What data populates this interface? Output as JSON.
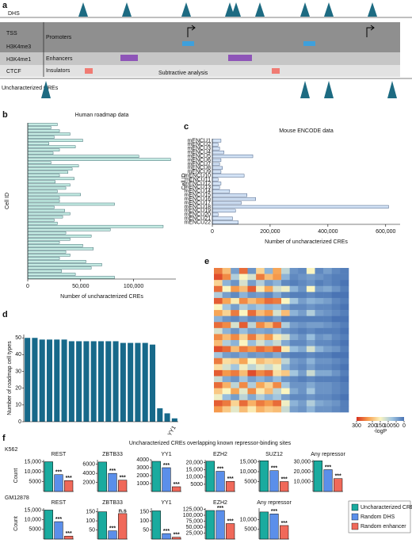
{
  "panel_labels": [
    "a",
    "b",
    "c",
    "d",
    "e",
    "f"
  ],
  "diagram": {
    "tracks": [
      "DHS",
      "TSS",
      "H3K4me3",
      "H3K4me1",
      "CTCF",
      "Uncharacterized CREs"
    ],
    "regions": [
      "Promoters",
      "Enhancers",
      "Insulators"
    ],
    "note": "Subtractive analysis"
  },
  "chart_data": [
    {
      "type": "hbar",
      "title": "Human roadmap data",
      "ylabel": "Cell ID",
      "xlabel": "Number of uncharacterized CREs",
      "color": "#c4ebe3",
      "edgecolor": "#1d4f57",
      "categories": [
        null,
        null,
        null,
        null,
        null,
        null,
        null,
        null,
        null,
        null,
        null,
        null,
        null,
        null,
        null,
        null,
        null,
        null,
        null,
        null,
        null,
        null,
        null,
        null,
        null,
        null,
        null,
        null,
        null,
        null,
        null,
        null,
        null,
        null,
        null,
        null,
        null,
        null,
        null,
        null,
        null,
        null,
        null,
        null,
        null,
        null,
        null,
        null,
        null
      ],
      "values": [
        28000,
        22000,
        30000,
        40000,
        25000,
        52000,
        20000,
        45000,
        30000,
        24000,
        105000,
        135000,
        22000,
        48000,
        42000,
        38000,
        30000,
        44000,
        26000,
        40000,
        36000,
        28000,
        50000,
        30000,
        30000,
        82000,
        25000,
        35000,
        40000,
        33000,
        25000,
        28000,
        128000,
        78000,
        36000,
        60000,
        40000,
        30000,
        52000,
        62000,
        36000,
        40000,
        30000,
        55000,
        70000,
        60000,
        32000,
        45000,
        82000
      ],
      "xlim": [
        0,
        140000
      ],
      "xticks": [
        0,
        {
          "value": 50000,
          "label": "50,000"
        },
        {
          "value": 100000,
          "label": "100,000"
        }
      ]
    },
    {
      "type": "hbar",
      "title": "Mouse ENCODE data",
      "ylabel": "Cell ID",
      "xlabel": "Number of uncharacterized CREs",
      "color": "#d3e3f6",
      "edgecolor": "#1f3a66",
      "categories": [
        "mENCU1",
        "mENCU2",
        "mENCU3",
        "mENCU4",
        "mENCU5",
        "mENCU6",
        "mENCU7",
        "mENCU8",
        "mENCU9",
        "mENCU10",
        "mENCU11",
        "mENCU12",
        "mENCU13",
        "mENCU14",
        "mENCU15",
        "mENCU16",
        "mENCU17",
        "mENCU18",
        "mENCU19",
        "mENCU20",
        "mENCU21",
        "mENCU22"
      ],
      "values": [
        30000,
        20000,
        25000,
        40000,
        140000,
        30000,
        25000,
        35000,
        30000,
        110000,
        20000,
        30000,
        25000,
        60000,
        120000,
        150000,
        100000,
        610000,
        80000,
        20000,
        70000,
        90000
      ],
      "xlim": [
        0,
        650000
      ],
      "xticks": [
        0,
        {
          "value": 200000,
          "label": "200,000"
        },
        {
          "value": 400000,
          "label": "400,000"
        },
        {
          "value": 600000,
          "label": "600,000"
        }
      ]
    },
    {
      "type": "bar",
      "ylabel": "Number of roadmap cell types",
      "color": "#17698a",
      "categories": [
        null,
        null,
        null,
        null,
        null,
        null,
        null,
        null,
        null,
        null,
        null,
        null,
        null,
        null,
        null,
        null,
        null,
        null,
        null,
        null,
        "YY1"
      ],
      "values": [
        50,
        50,
        49,
        49,
        49,
        49,
        48,
        48,
        48,
        48,
        48,
        48,
        48,
        47,
        47,
        47,
        47,
        46,
        8,
        5,
        2
      ],
      "ylim": [
        0,
        52
      ],
      "yticks": [
        0,
        10,
        20,
        30,
        40,
        50
      ]
    },
    {
      "type": "heatmap",
      "colorbar_label": "-logP",
      "vlim": [
        0,
        300
      ],
      "cticks": [
        300,
        200,
        150,
        100,
        50,
        0
      ],
      "values": [
        [
          250,
          200,
          40,
          260,
          30,
          180,
          60,
          220,
          100,
          30,
          20,
          150,
          20,
          40,
          20,
          10
        ],
        [
          280,
          240,
          90,
          150,
          120,
          250,
          200,
          230,
          60,
          20,
          30,
          40,
          30,
          20,
          10,
          10
        ],
        [
          180,
          60,
          30,
          120,
          40,
          90,
          40,
          60,
          20,
          10,
          20,
          30,
          10,
          20,
          10,
          0
        ],
        [
          260,
          150,
          230,
          200,
          270,
          160,
          220,
          120,
          140,
          60,
          30,
          150,
          40,
          50,
          30,
          10
        ],
        [
          90,
          40,
          20,
          60,
          30,
          40,
          20,
          50,
          20,
          10,
          10,
          20,
          10,
          10,
          0,
          0
        ],
        [
          270,
          220,
          160,
          240,
          200,
          230,
          260,
          250,
          150,
          80,
          40,
          60,
          50,
          40,
          20,
          10
        ],
        [
          150,
          80,
          40,
          90,
          60,
          80,
          60,
          70,
          40,
          20,
          20,
          30,
          20,
          20,
          10,
          0
        ],
        [
          220,
          180,
          250,
          150,
          260,
          200,
          230,
          120,
          200,
          60,
          40,
          90,
          40,
          30,
          20,
          10
        ],
        [
          60,
          30,
          20,
          40,
          20,
          30,
          20,
          40,
          10,
          10,
          10,
          10,
          10,
          10,
          0,
          0
        ],
        [
          260,
          240,
          120,
          270,
          100,
          240,
          200,
          260,
          90,
          40,
          30,
          40,
          40,
          30,
          20,
          10
        ],
        [
          120,
          60,
          30,
          70,
          40,
          50,
          40,
          60,
          30,
          20,
          10,
          20,
          10,
          10,
          10,
          0
        ],
        [
          240,
          200,
          240,
          180,
          250,
          190,
          230,
          160,
          120,
          50,
          30,
          70,
          30,
          40,
          20,
          10
        ],
        [
          200,
          90,
          60,
          150,
          70,
          120,
          80,
          110,
          50,
          20,
          20,
          40,
          20,
          20,
          10,
          0
        ],
        [
          280,
          260,
          200,
          250,
          230,
          260,
          240,
          270,
          160,
          70,
          50,
          120,
          60,
          40,
          30,
          10
        ],
        [
          80,
          40,
          30,
          50,
          30,
          40,
          30,
          50,
          20,
          10,
          10,
          20,
          10,
          10,
          0,
          0
        ],
        [
          250,
          170,
          180,
          220,
          150,
          200,
          180,
          190,
          100,
          40,
          30,
          60,
          30,
          30,
          20,
          10
        ],
        [
          170,
          120,
          80,
          140,
          100,
          130,
          110,
          140,
          60,
          30,
          20,
          40,
          20,
          20,
          10,
          0
        ],
        [
          270,
          230,
          250,
          200,
          280,
          240,
          260,
          170,
          190,
          80,
          40,
          110,
          50,
          50,
          30,
          10
        ],
        [
          110,
          50,
          30,
          80,
          40,
          60,
          40,
          70,
          30,
          20,
          10,
          20,
          10,
          10,
          10,
          0
        ],
        [
          260,
          210,
          100,
          240,
          90,
          220,
          180,
          240,
          80,
          30,
          30,
          50,
          30,
          30,
          20,
          10
        ],
        [
          190,
          150,
          220,
          130,
          240,
          160,
          200,
          100,
          150,
          50,
          30,
          80,
          30,
          30,
          20,
          10
        ],
        [
          140,
          70,
          40,
          100,
          50,
          90,
          60,
          80,
          40,
          20,
          20,
          30,
          20,
          20,
          10,
          0
        ],
        [
          270,
          250,
          180,
          260,
          210,
          250,
          230,
          260,
          140,
          60,
          40,
          90,
          50,
          40,
          30,
          10
        ],
        [
          230,
          190,
          130,
          200,
          160,
          210,
          190,
          200,
          110,
          40,
          30,
          60,
          30,
          30,
          20,
          10
        ]
      ]
    },
    {
      "type": "panels",
      "title": "Uncharacterized CREs overlapping known repressor-binding sites",
      "ylabel": "Count",
      "series": [
        {
          "name": "Uncharacterized CRE",
          "color": "#1aab9f"
        },
        {
          "name": "Random DHS",
          "color": "#5b8fea"
        },
        {
          "name": "Random enhancer",
          "color": "#f0695a"
        }
      ],
      "rows": [
        {
          "label": "K562",
          "panels": [
            {
              "title": "REST",
              "values": [
                15000,
                8500,
                5500
              ],
              "ylim": [
                0,
                16000
              ],
              "yticks": [
                5000,
                {
                  "value": 10000,
                  "label": "10,000"
                },
                {
                  "value": 15000,
                  "label": "15,000"
                }
              ],
              "annotations": [
                null,
                "***",
                "***"
              ]
            },
            {
              "title": "ZBTB33",
              "values": [
                6500,
                4000,
                2500
              ],
              "ylim": [
                0,
                7000
              ],
              "yticks": [
                2000,
                4000,
                6000
              ],
              "annotations": [
                null,
                "***",
                "***"
              ]
            },
            {
              "title": "YY1",
              "values": [
                3800,
                3000,
                600
              ],
              "ylim": [
                0,
                4000
              ],
              "yticks": [
                1000,
                2000,
                3000,
                4000
              ],
              "annotations": [
                null,
                "***",
                "***"
              ]
            },
            {
              "title": "EZH2",
              "values": [
                21000,
                14000,
                7000
              ],
              "ylim": [
                0,
                22000
              ],
              "yticks": [
                5000,
                {
                  "value": 10000,
                  "label": "10,000"
                },
                {
                  "value": 15000,
                  "label": "15,000"
                },
                {
                  "value": 20000,
                  "label": "20,000"
                }
              ],
              "annotations": [
                null,
                "***",
                "***"
              ]
            },
            {
              "title": "SUZ12",
              "values": [
                15500,
                10500,
                5000
              ],
              "ylim": [
                0,
                16000
              ],
              "yticks": [
                5000,
                {
                  "value": 10000,
                  "label": "10,000"
                },
                {
                  "value": 15000,
                  "label": "15,000"
                }
              ],
              "annotations": [
                null,
                "***",
                "***"
              ]
            },
            {
              "title": "Any repressor",
              "values": [
                31000,
                22000,
                13000
              ],
              "ylim": [
                0,
                32000
              ],
              "yticks": [
                {
                  "value": 10000,
                  "label": "10,000"
                },
                {
                  "value": 20000,
                  "label": "20,000"
                },
                {
                  "value": 30000,
                  "label": "30,000"
                }
              ],
              "annotations": [
                null,
                "***",
                "***"
              ]
            }
          ]
        },
        {
          "label": "GM12878",
          "panels": [
            {
              "title": "REST",
              "values": [
                15000,
                9000,
                1500
              ],
              "ylim": [
                0,
                16000
              ],
              "yticks": [
                5000,
                {
                  "value": 10000,
                  "label": "10,000"
                },
                {
                  "value": 15000,
                  "label": "15,000"
                }
              ],
              "annotations": [
                null,
                "***",
                "***"
              ]
            },
            {
              "title": "ZBTB33",
              "values": [
                150,
                45,
                140
              ],
              "ylim": [
                0,
                170
              ],
              "yticks": [
                50,
                100,
                150
              ],
              "annotations": [
                null,
                "***",
                "n.s"
              ]
            },
            {
              "title": "YY1",
              "values": [
                155,
                30,
                10
              ],
              "ylim": [
                0,
                170
              ],
              "yticks": [
                50,
                100,
                150
              ],
              "annotations": [
                null,
                "***",
                "***"
              ]
            },
            {
              "title": "EZH2",
              "values": [
                120000,
                120000,
                65000
              ],
              "ylim": [
                0,
                130000
              ],
              "yticks": [
                {
                  "value": 25000,
                  "label": "25,000"
                },
                {
                  "value": 50000,
                  "label": "50,000"
                },
                {
                  "value": 75000,
                  "label": "75,000"
                },
                {
                  "value": 100000,
                  "label": "100,000"
                },
                {
                  "value": 125000,
                  "label": "125,000"
                }
              ],
              "annotations": [
                null,
                "***",
                "***"
              ]
            },
            {
              "title": "Any repressor",
              "values": [
                14000,
                13000,
                7000
              ],
              "ylim": [
                0,
                16000
              ],
              "yticks": [
                5000,
                {
                  "value": 10000,
                  "label": "10,000"
                }
              ],
              "annotations": [
                null,
                "***",
                "***"
              ]
            }
          ]
        }
      ]
    }
  ]
}
